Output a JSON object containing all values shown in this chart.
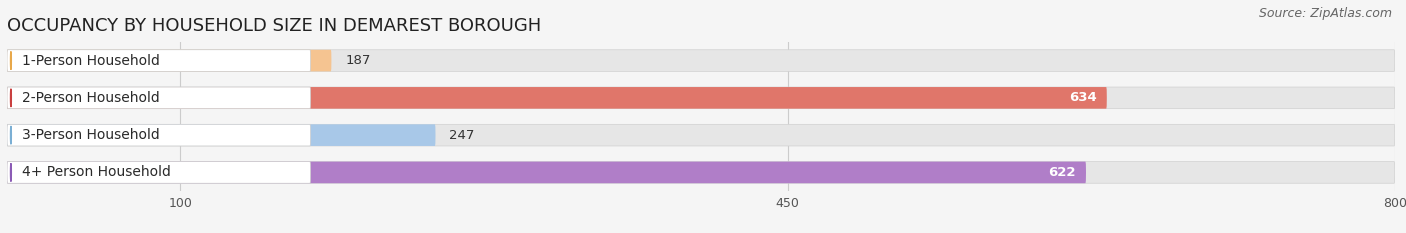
{
  "title": "OCCUPANCY BY HOUSEHOLD SIZE IN DEMAREST BOROUGH",
  "source": "Source: ZipAtlas.com",
  "categories": [
    "1-Person Household",
    "2-Person Household",
    "3-Person Household",
    "4+ Person Household"
  ],
  "values": [
    187,
    634,
    247,
    622
  ],
  "bar_colors": [
    "#f5c491",
    "#e0766a",
    "#a8c8e8",
    "#b07ec8"
  ],
  "label_accent_colors": [
    "#e8a84a",
    "#c94040",
    "#7bafd4",
    "#8b5bb5"
  ],
  "value_label_inside": [
    false,
    true,
    false,
    true
  ],
  "xlim": [
    0,
    800
  ],
  "xticks": [
    100,
    450,
    800
  ],
  "bar_height": 0.58,
  "figsize": [
    14.06,
    2.33
  ],
  "dpi": 100,
  "background_color": "#f5f5f5",
  "bar_bg_color": "#e6e6e6",
  "title_fontsize": 13,
  "source_fontsize": 9,
  "label_fontsize": 10,
  "value_fontsize": 9.5
}
